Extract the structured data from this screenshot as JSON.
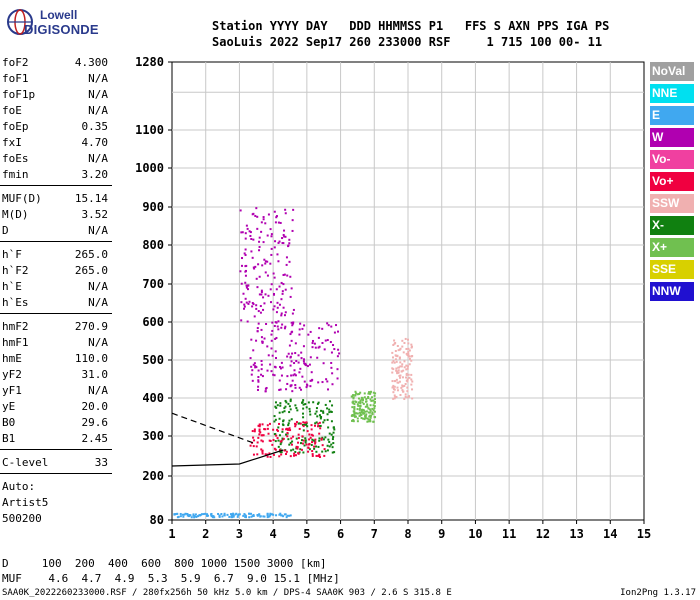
{
  "logo": {
    "line1": "Lowell",
    "line2": "DIGISONDE"
  },
  "header": {
    "line1": "Station YYYY DAY   DDD HHMMSS P1   FFS S AXN PPS IGA PS",
    "line2": "SaoLuis 2022 Sep17 260 233000 RSF     1 715 100 00- 11"
  },
  "params": [
    {
      "k": "foF2",
      "v": "4.300"
    },
    {
      "k": "foF1",
      "v": "N/A"
    },
    {
      "k": "foF1p",
      "v": "N/A"
    },
    {
      "k": "foE",
      "v": "N/A"
    },
    {
      "k": "foEp",
      "v": "0.35"
    },
    {
      "k": "fxI",
      "v": "4.70"
    },
    {
      "k": "foEs",
      "v": "N/A"
    },
    {
      "k": "fmin",
      "v": "3.20"
    },
    {
      "k": "MUF(D)",
      "v": "15.14"
    },
    {
      "k": "M(D)",
      "v": "3.52"
    },
    {
      "k": "D",
      "v": "N/A"
    },
    {
      "k": "h`F",
      "v": "265.0"
    },
    {
      "k": "h`F2",
      "v": "265.0"
    },
    {
      "k": "h`E",
      "v": "N/A"
    },
    {
      "k": "h`Es",
      "v": "N/A"
    },
    {
      "k": "hmF2",
      "v": "270.9"
    },
    {
      "k": "hmF1",
      "v": "N/A"
    },
    {
      "k": "hmE",
      "v": "110.0"
    },
    {
      "k": "yF2",
      "v": "31.0"
    },
    {
      "k": "yF1",
      "v": "N/A"
    },
    {
      "k": "yE",
      "v": "20.0"
    },
    {
      "k": "B0",
      "v": "29.6"
    },
    {
      "k": "B1",
      "v": "2.45"
    },
    {
      "k": "C-level",
      "v": "33"
    },
    {
      "k": "Auto:",
      "v": ""
    },
    {
      "k": "Artist5",
      "v": ""
    },
    {
      "k": "500200",
      "v": ""
    }
  ],
  "legend": [
    {
      "label": "NoVal",
      "color": "#a0a0a0"
    },
    {
      "label": "NNE",
      "color": "#00e0f0"
    },
    {
      "label": "E",
      "color": "#40a8f0"
    },
    {
      "label": "W",
      "color": "#b000b0"
    },
    {
      "label": "Vo-",
      "color": "#f040a0"
    },
    {
      "label": "Vo+",
      "color": "#f00040"
    },
    {
      "label": "SSW",
      "color": "#f0b0b0"
    },
    {
      "label": "X-",
      "color": "#108010"
    },
    {
      "label": "X+",
      "color": "#70c050"
    },
    {
      "label": "SSE",
      "color": "#d8d000"
    },
    {
      "label": "NNW",
      "color": "#2010d0"
    }
  ],
  "footer": {
    "line1": "D     100  200  400  600  800 1000 1500 3000 [km]",
    "line2": "MUF    4.6  4.7  4.9  5.3  5.9  6.7  9.0 15.1 [MHz]",
    "filename": "SAA0K_2022260233000.RSF / 280fx256h 50 kHz 5.0 km / DPS-4 SAA0K 903 / 2.6 S 315.8 E",
    "version": "Ion2Png 1.3.17"
  },
  "chart_data": {
    "type": "scatter",
    "title": "",
    "xlabel": "",
    "ylabel": "",
    "xlim": [
      1,
      15
    ],
    "ylim": [
      80,
      1280
    ],
    "x_ticks": [
      1,
      2,
      3,
      4,
      5,
      6,
      7,
      8,
      9,
      10,
      11,
      12,
      13,
      14,
      15
    ],
    "y_ticks": [
      80,
      200,
      300,
      400,
      500,
      600,
      700,
      800,
      900,
      1000,
      1100,
      1280
    ],
    "y_scale": "nonlinear",
    "grid": true,
    "legend_position": "right",
    "echo_clusters": [
      {
        "name": "W",
        "color": "#b000b0",
        "f": [
          3.3,
          6.0
        ],
        "h": [
          420,
          600
        ]
      },
      {
        "name": "W",
        "color": "#b000b0",
        "f": [
          3.0,
          4.6
        ],
        "h": [
          600,
          900
        ]
      },
      {
        "name": "X-",
        "color": "#108010",
        "f": [
          4.0,
          5.8
        ],
        "h": [
          260,
          400
        ]
      },
      {
        "name": "X+",
        "color": "#70c050",
        "f": [
          6.3,
          7.0
        ],
        "h": [
          340,
          420
        ]
      },
      {
        "name": "Vo+",
        "color": "#f00040",
        "f": [
          3.3,
          5.5
        ],
        "h": [
          250,
          340
        ]
      },
      {
        "name": "SSW",
        "color": "#f0b0b0",
        "f": [
          7.5,
          8.1
        ],
        "h": [
          400,
          560
        ]
      },
      {
        "name": "E",
        "color": "#40a8f0",
        "f": [
          1.0,
          4.5
        ],
        "h": [
          90,
          100
        ]
      }
    ],
    "trace": {
      "f": [
        1.0,
        3.0,
        4.3
      ],
      "h": [
        225,
        230,
        265
      ]
    },
    "dashed_trace": {
      "f": [
        1.0,
        3.5
      ],
      "h": [
        360,
        280
      ]
    }
  }
}
